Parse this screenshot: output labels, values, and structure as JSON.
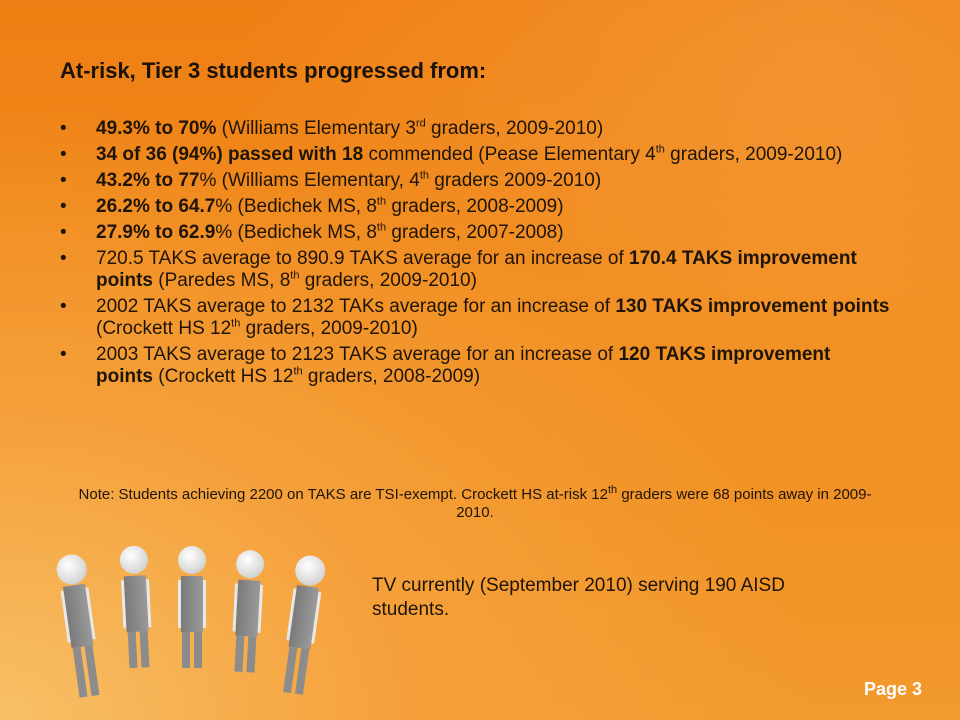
{
  "slide": {
    "title": "At-risk, Tier 3 students progressed from:",
    "bullet_char": "•",
    "bullets": [
      {
        "bold": "49.3% to 70%",
        "rest": " (Williams Elementary 3",
        "sup": "rd",
        "tail": " graders, 2009-2010)"
      },
      {
        "bold": "34 of 36 (94%) passed with 18",
        "rest": " commended (Pease Elementary 4",
        "sup": "th",
        "tail": " graders, 2009-2010)"
      },
      {
        "bold": "43.2% to 77",
        "rest": "% (Williams Elementary, 4",
        "sup": "th",
        "tail": " graders 2009-2010)"
      },
      {
        "bold": "26.2% to 64.7",
        "rest": "% (Bedichek MS, 8",
        "sup": "th",
        "tail": " graders, 2008-2009)"
      },
      {
        "bold": "27.9% to 62.9",
        "rest": "% (Bedichek MS, 8",
        "sup": "th",
        "tail": " graders, 2007-2008)"
      },
      {
        "pre": "720.5 TAKS average to 890.9 TAKS average for an increase of ",
        "bold": "170.4 TAKS improvement points",
        "rest": " (Paredes MS, 8",
        "sup": "th",
        "tail": " graders, 2009-2010)"
      },
      {
        "pre": "2002 TAKS average to 2132 TAKs average for an increase of ",
        "bold": "130 TAKS improvement points",
        "rest": " (Crockett HS 12",
        "sup": "th",
        "tail": " graders, 2009-2010)"
      },
      {
        "pre": "2003 TAKS average to 2123 TAKS average for an increase of ",
        "bold": "120 TAKS improvement points",
        "rest": " (Crockett HS 12",
        "sup": "th",
        "tail": " graders, 2008-2009)"
      }
    ],
    "note_main": "Note: Students achieving 2200 on TAKS are TSI-exempt. Crockett HS at-risk 12",
    "note_sup": "th",
    "note_tail": " graders were 68 points away in 2009-2010.",
    "tv_text": "TV currently (September 2010) serving 190 AISD students.",
    "page_label": "Page 3"
  },
  "colors": {
    "background": "#ef7f14",
    "text": "#1f1408",
    "page_label": "#ffffff"
  },
  "icons": {
    "figures": "people-figures-illustration"
  }
}
